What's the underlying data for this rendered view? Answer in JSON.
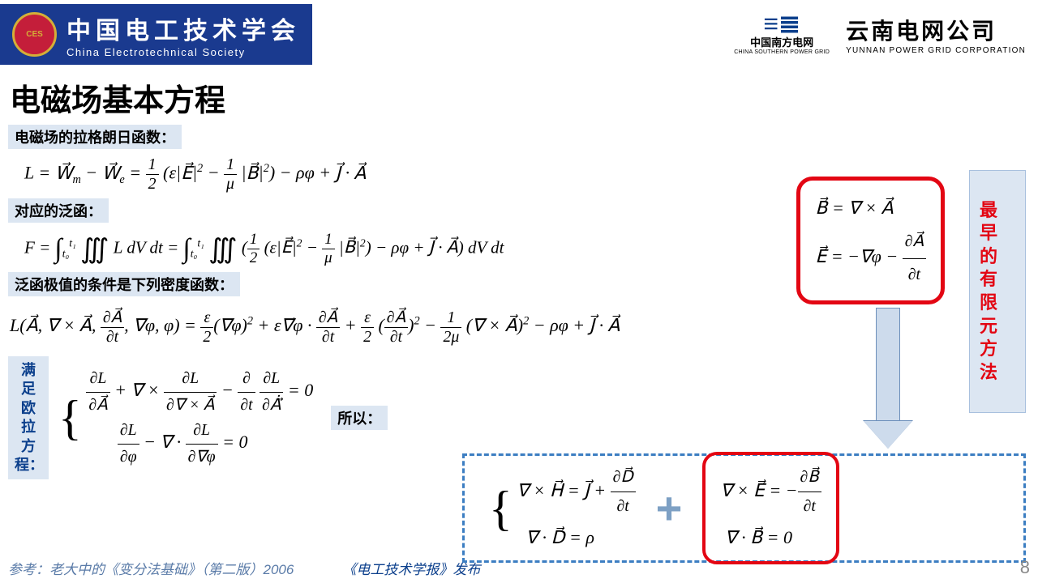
{
  "header": {
    "ces_logo_text": "CES",
    "ces_cn": "中国电工技术学会",
    "ces_en": "China Electrotechnical Society",
    "csg_cn": "中国南方电网",
    "csg_en": "CHINA SOUTHERN POWER GRID",
    "yn_cn": "云南电网公司",
    "yn_en": "YUNNAN POWER GRID CORPORATION"
  },
  "title": "电磁场基本方程",
  "labels": {
    "lagrangian": "电磁场的拉格朗日函数：",
    "functional": "对应的泛函：",
    "extremum": "泛函极值的条件是下列密度函数：",
    "euler": "满足欧拉方程：",
    "therefore": "所以："
  },
  "side_note": "最早的有限元方法",
  "equations": {
    "L_def": "L = W⃗ₘ − W⃗ₑ = ½(ε|E⃗|² − (1/μ)|B⃗|²) − ρφ + J⃗·A⃗",
    "F_def": "F = ∫∭ L dV dt = ∫∭ (½(ε|E⃗|² − (1/μ)|B⃗|²) − ρφ + J⃗·A⃗) dV dt",
    "L_expanded": "L(A⃗, ∇×A⃗, ∂A⃗/∂t, ∇φ, φ) = (ε/2)(∇φ)² + ε∇φ·∂A⃗/∂t + (ε/2)(∂A⃗/∂t)² − (1/2μ)(∇×A⃗)² − ρφ + J⃗·A⃗",
    "euler1": "∂L/∂A⃗ + ∇×(∂L/∂(∇×A⃗)) − ∂/∂t ∂L/∂Ȧ⃗ = 0",
    "euler2": "∂L/∂φ − ∇·∂L/∂∇φ = 0",
    "potentials_B": "B⃗ = ∇ × A⃗",
    "potentials_E": "E⃗ = −∇φ − ∂A⃗/∂t",
    "max1": "∇ × H⃗ = J⃗ + ∂D⃗/∂t",
    "max2": "∇ · D⃗ = ρ",
    "max3": "∇ × E⃗ = −∂B⃗/∂t",
    "max4": "∇ · B⃗ = 0"
  },
  "footer": {
    "reference": "参考：老大中的《变分法基础》（第二版）2006",
    "publisher": "《电工技术学报》发布",
    "page": "8"
  },
  "colors": {
    "header_bg": "#1a3a8f",
    "label_bg": "#dce6f2",
    "red_border": "#e30613",
    "dashed_border": "#3c7ec2",
    "side_text": "#e30613",
    "arrow_fill": "#cddbec",
    "arrow_border": "#6d8fbb",
    "plus_color": "#7da0c4"
  }
}
